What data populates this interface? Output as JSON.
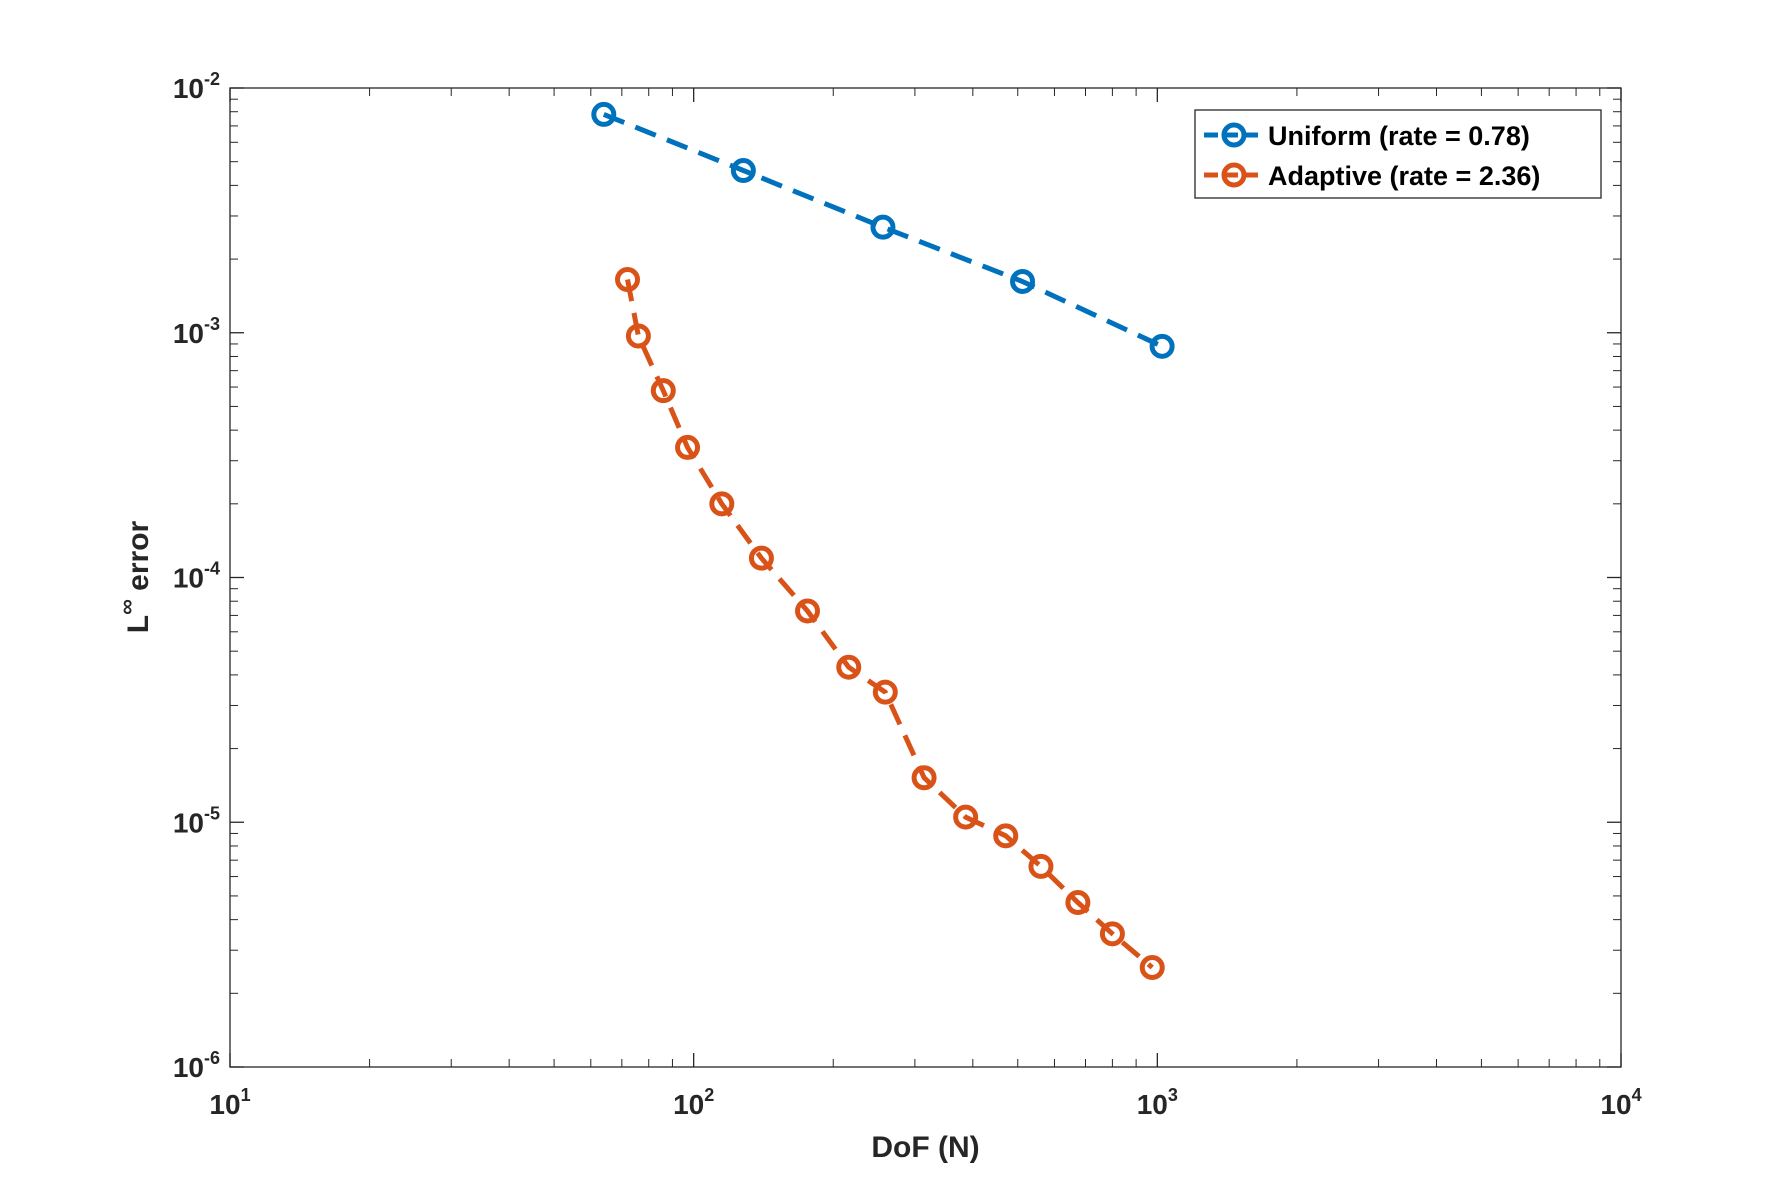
{
  "chart_data": {
    "type": "line",
    "xscale": "log",
    "yscale": "log",
    "xlim": [
      10,
      10000
    ],
    "ylim": [
      1e-06,
      0.01
    ],
    "xticks": [
      {
        "value": 10,
        "base": "10",
        "exp": "1"
      },
      {
        "value": 100,
        "base": "10",
        "exp": "2"
      },
      {
        "value": 1000,
        "base": "10",
        "exp": "3"
      },
      {
        "value": 10000,
        "base": "10",
        "exp": "4"
      }
    ],
    "yticks": [
      {
        "value": 1e-06,
        "base": "10",
        "exp": "-6"
      },
      {
        "value": 1e-05,
        "base": "10",
        "exp": "-5"
      },
      {
        "value": 0.0001,
        "base": "10",
        "exp": "-4"
      },
      {
        "value": 0.001,
        "base": "10",
        "exp": "-3"
      },
      {
        "value": 0.01,
        "base": "10",
        "exp": "-2"
      }
    ],
    "xlabel": "DoF (N)",
    "ylabel_main": "L",
    "ylabel_sup": "∞",
    "ylabel_rest": " error",
    "legend_position": "top-right",
    "grid": false,
    "series": [
      {
        "name": "Uniform (rate = 0.78)",
        "color": "#0072BD",
        "marker": "circle",
        "line_style": "dashed",
        "x": [
          64,
          128,
          256,
          512,
          1024
        ],
        "y": [
          0.0078,
          0.0046,
          0.0027,
          0.00162,
          0.00088
        ]
      },
      {
        "name": "Adaptive (rate = 2.36)",
        "color": "#D95319",
        "marker": "circle",
        "line_style": "dashed",
        "x": [
          72,
          76,
          86,
          97,
          115,
          140,
          176,
          216,
          259,
          314,
          386,
          471,
          561,
          674,
          800,
          975
        ],
        "y": [
          0.00165,
          0.00097,
          0.00058,
          0.00034,
          0.0002,
          0.00012,
          7.3e-05,
          4.3e-05,
          3.4e-05,
          1.52e-05,
          1.05e-05,
          8.8e-06,
          6.6e-06,
          4.7e-06,
          3.5e-06,
          2.55e-06
        ]
      }
    ]
  }
}
